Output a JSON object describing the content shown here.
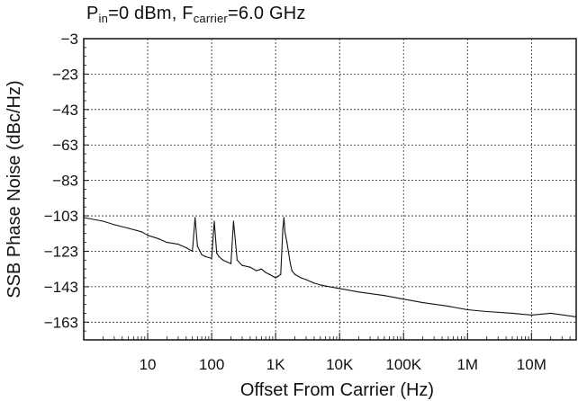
{
  "chart_data": {
    "type": "line",
    "title": {
      "p_main": "P",
      "p_sub": "in",
      "p_rest": "=0 dBm, F",
      "f_sub": "carrier",
      "f_rest": "=6.0 GHz"
    },
    "xlabel": "Offset From Carrier (Hz)",
    "ylabel": "SSB Phase Noise (dBc/Hz)",
    "x_scale": "log",
    "xlim": [
      1,
      50000000
    ],
    "ylim": [
      -173,
      -3
    ],
    "grid": true,
    "x_tick_labels": [
      {
        "x": 10,
        "label": "10"
      },
      {
        "x": 100,
        "label": "100"
      },
      {
        "x": 1000,
        "label": "1K"
      },
      {
        "x": 10000,
        "label": "10K"
      },
      {
        "x": 100000,
        "label": "100K"
      },
      {
        "x": 1000000,
        "label": "1M"
      },
      {
        "x": 10000000,
        "label": "10M"
      }
    ],
    "y_ticks": [
      -3,
      -23,
      -43,
      -63,
      -83,
      -103,
      -123,
      -143,
      -163
    ],
    "y_tick_labels": [
      "−3",
      "−23",
      "−43",
      "−63",
      "−83",
      "−103",
      "−123",
      "−143",
      "−163"
    ],
    "series": [
      {
        "x": [
          1,
          2,
          3,
          5,
          8,
          10,
          15,
          20,
          30,
          40,
          50,
          55,
          60,
          70,
          80,
          100,
          110,
          120,
          130,
          150,
          200,
          220,
          250,
          300,
          400,
          500,
          600,
          700,
          800,
          1000,
          1100,
          1200,
          1300,
          1350,
          1400,
          1500,
          1600,
          1700,
          1800,
          2000,
          2500,
          3000,
          4000,
          5000,
          7000,
          10000,
          20000,
          50000,
          100000,
          200000,
          500000,
          1000000,
          2000000,
          5000000,
          10000000,
          20000000,
          50000000
        ],
        "y": [
          -104,
          -106,
          -108,
          -110,
          -112,
          -114,
          -116,
          -118,
          -119,
          -121,
          -123,
          -104,
          -120,
          -125,
          -126,
          -127,
          -106,
          -124,
          -126,
          -128,
          -130,
          -106,
          -128,
          -131,
          -132,
          -134,
          -133,
          -135,
          -136,
          -138,
          -137,
          -136,
          -110,
          -104,
          -112,
          -118,
          -124,
          -130,
          -134,
          -136,
          -138,
          -139,
          -141,
          -142,
          -143,
          -144,
          -146,
          -148,
          -150,
          -152,
          -154,
          -156,
          -157,
          -158,
          -159,
          -158,
          -160
        ]
      }
    ]
  }
}
